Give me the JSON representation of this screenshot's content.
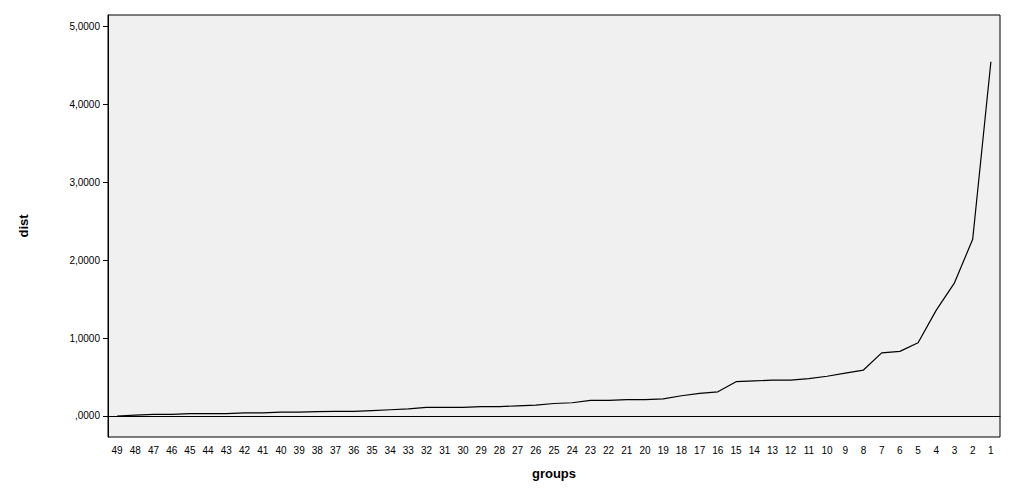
{
  "chart_data": {
    "type": "line",
    "x_label": "groups",
    "y_label": "dist",
    "categories": [
      "49",
      "48",
      "47",
      "46",
      "45",
      "44",
      "43",
      "42",
      "41",
      "40",
      "39",
      "38",
      "37",
      "36",
      "35",
      "34",
      "33",
      "32",
      "31",
      "30",
      "29",
      "28",
      "27",
      "26",
      "25",
      "24",
      "23",
      "22",
      "21",
      "20",
      "19",
      "18",
      "17",
      "16",
      "15",
      "14",
      "13",
      "12",
      "11",
      "10",
      "9",
      "8",
      "7",
      "6",
      "5",
      "4",
      "3",
      "2",
      "1"
    ],
    "values": [
      0.0,
      0.01,
      0.02,
      0.02,
      0.03,
      0.03,
      0.03,
      0.04,
      0.04,
      0.05,
      0.05,
      0.055,
      0.06,
      0.06,
      0.07,
      0.08,
      0.09,
      0.11,
      0.11,
      0.11,
      0.12,
      0.12,
      0.13,
      0.14,
      0.16,
      0.17,
      0.2,
      0.2,
      0.21,
      0.21,
      0.22,
      0.26,
      0.29,
      0.31,
      0.44,
      0.45,
      0.46,
      0.46,
      0.48,
      0.51,
      0.55,
      0.59,
      0.81,
      0.83,
      0.94,
      1.36,
      1.71,
      2.27,
      4.55
    ],
    "color": "#000000",
    "ylim": [
      -0.27,
      5.15
    ],
    "yticks": [
      {
        "value": 0,
        "label": ",0000"
      },
      {
        "value": 1,
        "label": "1,0000"
      },
      {
        "value": 2,
        "label": "2,0000"
      },
      {
        "value": 3,
        "label": "3,0000"
      },
      {
        "value": 4,
        "label": "4,0000"
      },
      {
        "value": 5,
        "label": "5,0000"
      }
    ],
    "grid": false
  }
}
